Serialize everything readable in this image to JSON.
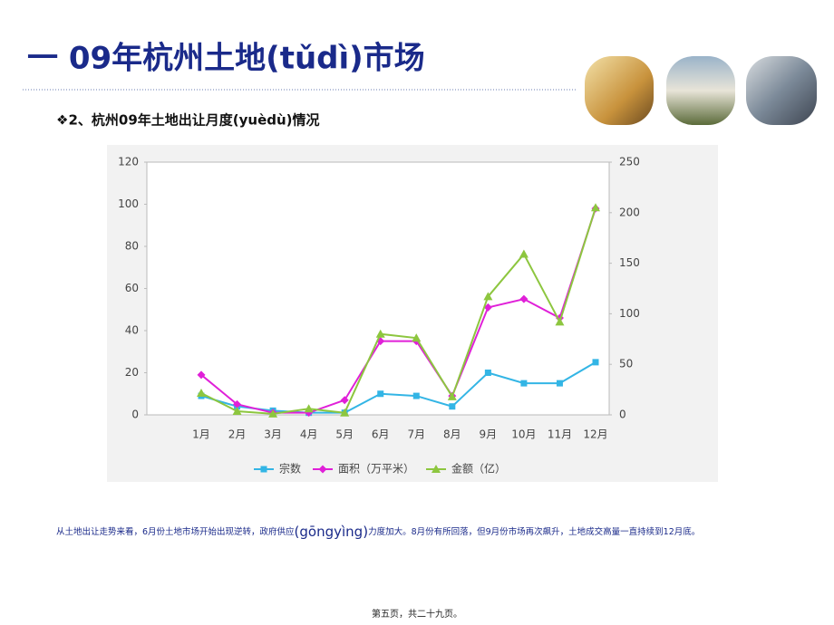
{
  "slide": {
    "title": "一 09年杭州土地(tǔdì)市场",
    "subtitle": "❖2、杭州09年土地出让月度(yuèdù)情况",
    "caption": [
      "从土地出让走势来看，6月份土地市场开始出现逆转，政府供应",
      "(gōngyìng)",
      "力度加大。8月份有所回落，但9月份市场再次飙升，土地成交高量一直持续到12月底。"
    ],
    "footer": "第五页，共二十九页。"
  },
  "chart_data": {
    "type": "line",
    "categories": [
      "1月",
      "2月",
      "3月",
      "4月",
      "5月",
      "6月",
      "7月",
      "8月",
      "9月",
      "10月",
      "11月",
      "12月"
    ],
    "series": [
      {
        "name": "宗数",
        "color": "#33b5e5",
        "marker": "square",
        "values": [
          9,
          4,
          2,
          1,
          1,
          10,
          9,
          4,
          20,
          15,
          15,
          25
        ]
      },
      {
        "name": "面积（万平米）",
        "color": "#e020d8",
        "marker": "diamond",
        "values": [
          19,
          5,
          1,
          1,
          7,
          35,
          35,
          9,
          51,
          55,
          46,
          98
        ]
      },
      {
        "name": "金额（亿）",
        "color": "#8dc63f",
        "marker": "triangle",
        "axis": "y2",
        "values": [
          21.5,
          3.6,
          1,
          6,
          2,
          80,
          76,
          18,
          117,
          159,
          92,
          205
        ]
      }
    ],
    "ylim": [
      0,
      120
    ],
    "yticks": [
      0,
      20,
      40,
      60,
      80,
      100,
      120
    ],
    "y2lim": [
      0,
      250
    ],
    "y2ticks": [
      0,
      50,
      100,
      150,
      200,
      250
    ],
    "grid": false,
    "legend": "bottom"
  }
}
